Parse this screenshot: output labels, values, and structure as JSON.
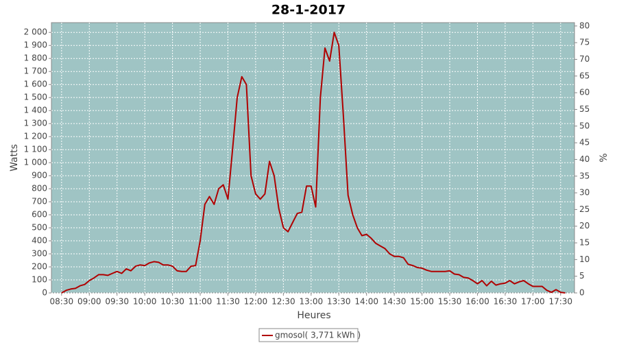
{
  "chart_data": {
    "type": "line",
    "title": "28-1-2017",
    "x_label": "Heures",
    "y_label": "Watts",
    "y2_label": "%",
    "x": [
      "08:30",
      "08:35",
      "08:40",
      "08:45",
      "08:50",
      "08:55",
      "09:00",
      "09:05",
      "09:10",
      "09:15",
      "09:20",
      "09:25",
      "09:30",
      "09:35",
      "09:40",
      "09:45",
      "09:50",
      "09:55",
      "10:00",
      "10:05",
      "10:10",
      "10:15",
      "10:20",
      "10:25",
      "10:30",
      "10:35",
      "10:40",
      "10:45",
      "10:50",
      "10:55",
      "11:00",
      "11:05",
      "11:10",
      "11:15",
      "11:20",
      "11:25",
      "11:30",
      "11:35",
      "11:40",
      "11:45",
      "11:50",
      "11:55",
      "12:00",
      "12:05",
      "12:10",
      "12:15",
      "12:20",
      "12:25",
      "12:30",
      "12:35",
      "12:40",
      "12:45",
      "12:50",
      "12:55",
      "13:00",
      "13:05",
      "13:10",
      "13:15",
      "13:20",
      "13:25",
      "13:30",
      "13:35",
      "13:40",
      "13:45",
      "13:50",
      "13:55",
      "14:00",
      "14:05",
      "14:10",
      "14:15",
      "14:20",
      "14:25",
      "14:30",
      "14:35",
      "14:40",
      "14:45",
      "14:50",
      "14:55",
      "15:00",
      "15:05",
      "15:10",
      "15:15",
      "15:20",
      "15:25",
      "15:30",
      "15:35",
      "15:40",
      "15:45",
      "15:50",
      "15:55",
      "16:00",
      "16:05",
      "16:10",
      "16:15",
      "16:20",
      "16:25",
      "16:30",
      "16:35",
      "16:40",
      "16:45",
      "16:50",
      "16:55",
      "17:00",
      "17:05",
      "17:10",
      "17:15",
      "17:20",
      "17:25",
      "17:30",
      "17:35"
    ],
    "series": [
      {
        "name": "gmosol( 3,771 kWh )",
        "color": "#b00000",
        "values": [
          0,
          20,
          30,
          35,
          55,
          65,
          95,
          115,
          140,
          140,
          135,
          150,
          165,
          150,
          185,
          170,
          205,
          215,
          210,
          230,
          240,
          235,
          215,
          215,
          205,
          170,
          165,
          165,
          205,
          210,
          400,
          680,
          740,
          680,
          800,
          830,
          720,
          1100,
          1500,
          1660,
          1600,
          900,
          760,
          720,
          760,
          1010,
          900,
          650,
          500,
          470,
          540,
          610,
          620,
          820,
          820,
          660,
          1500,
          1880,
          1780,
          2000,
          1900,
          1350,
          750,
          600,
          500,
          440,
          450,
          420,
          380,
          360,
          340,
          300,
          280,
          280,
          270,
          220,
          210,
          195,
          190,
          175,
          165,
          165,
          165,
          165,
          170,
          145,
          140,
          120,
          115,
          95,
          70,
          95,
          55,
          90,
          60,
          70,
          75,
          95,
          70,
          85,
          95,
          70,
          50,
          50,
          50,
          20,
          5,
          25,
          5,
          0
        ]
      }
    ],
    "xlim": [
      "08:19",
      "17:45"
    ],
    "xticks": [
      "08:30",
      "09:00",
      "09:30",
      "10:00",
      "10:30",
      "11:00",
      "11:30",
      "12:00",
      "12:30",
      "13:00",
      "13:30",
      "14:00",
      "14:30",
      "15:00",
      "15:30",
      "16:00",
      "16:30",
      "17:00",
      "17:30"
    ],
    "ylim": [
      0,
      2075
    ],
    "yticks": [
      0,
      100,
      200,
      300,
      400,
      500,
      600,
      700,
      800,
      900,
      {
        "value": 1000,
        "label": "1 000"
      },
      {
        "value": 1100,
        "label": "1 100"
      },
      {
        "value": 1200,
        "label": "1 200"
      },
      {
        "value": 1300,
        "label": "1 300"
      },
      {
        "value": 1400,
        "label": "1 400"
      },
      {
        "value": 1500,
        "label": "1 500"
      },
      {
        "value": 1600,
        "label": "1 600"
      },
      {
        "value": 1700,
        "label": "1 700"
      },
      {
        "value": 1800,
        "label": "1 800"
      },
      {
        "value": 1900,
        "label": "1 900"
      },
      {
        "value": 2000,
        "label": "2 000"
      }
    ],
    "y2lim": [
      0,
      81
    ],
    "y2ticks": [
      0,
      5,
      10,
      15,
      20,
      25,
      30,
      35,
      40,
      45,
      50,
      55,
      60,
      65,
      70,
      75,
      80
    ],
    "grid": true,
    "plot_background": "#9fc4c4"
  }
}
